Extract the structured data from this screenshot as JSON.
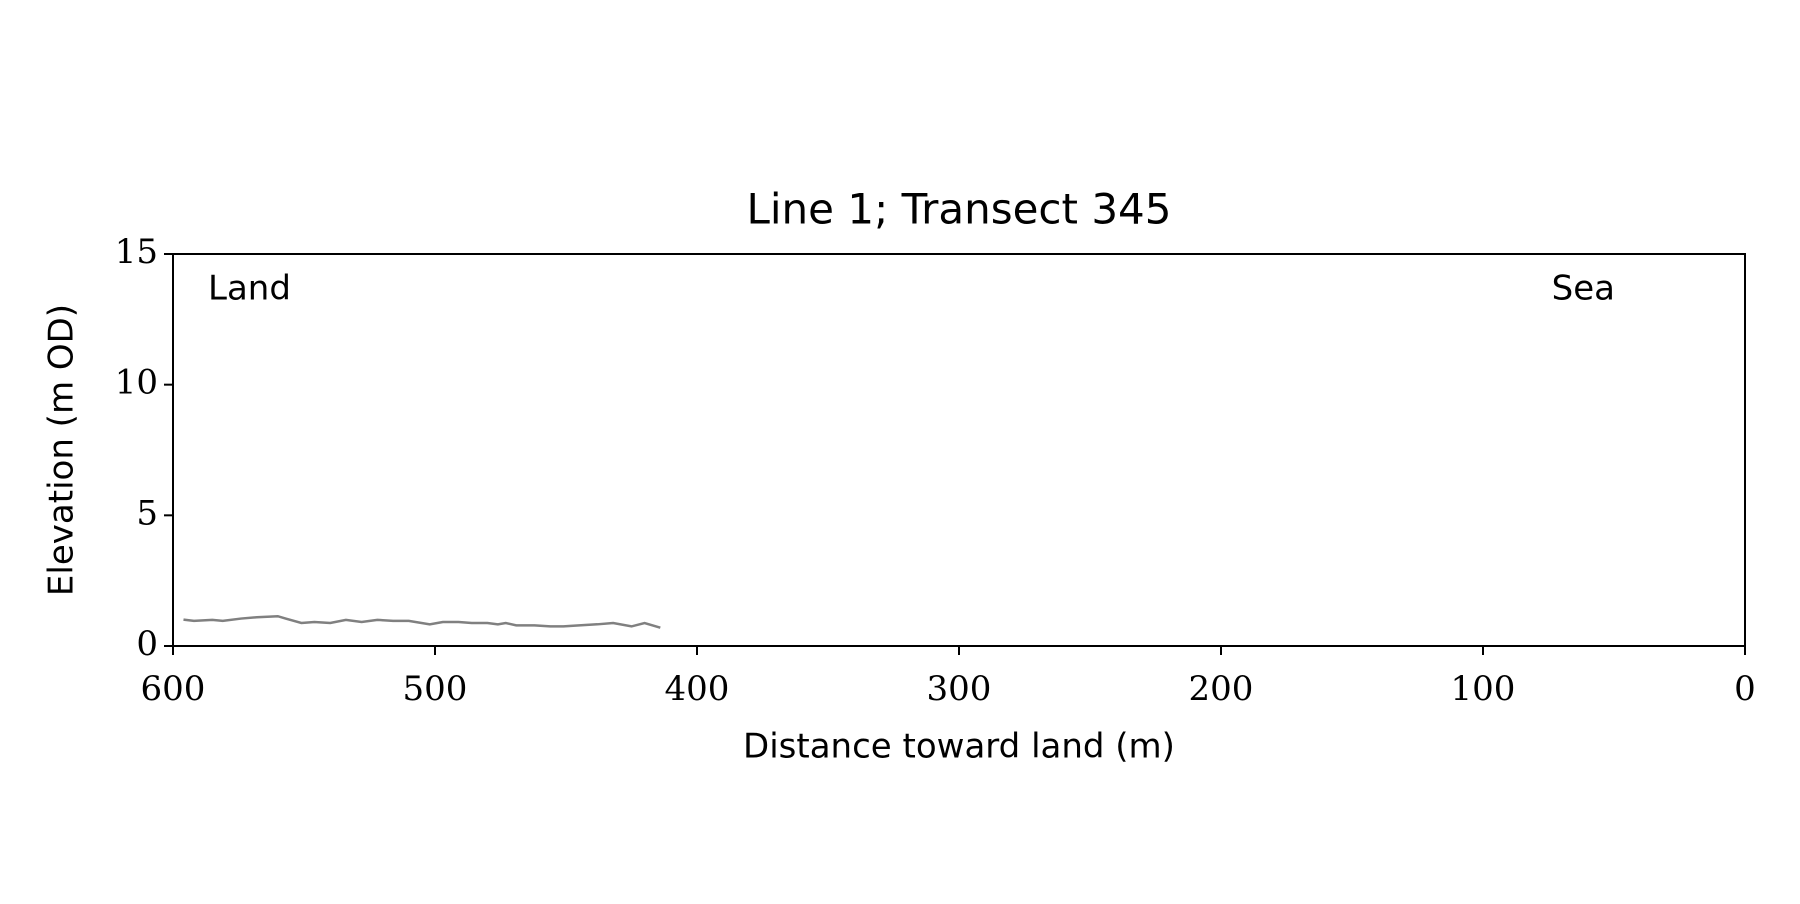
{
  "chart_data": {
    "type": "line",
    "title": "Line 1; Transect 345",
    "xlabel": "Distance toward land (m)",
    "ylabel": "Elevation (m OD)",
    "annotations": [
      "Land",
      "Sea"
    ],
    "x": [
      596,
      592,
      585,
      581,
      574,
      568,
      560,
      557,
      551,
      546,
      540,
      534,
      528,
      522,
      516,
      510,
      502,
      497,
      491,
      486,
      480,
      476,
      473,
      469,
      462,
      456,
      451,
      445,
      438,
      432,
      425,
      420,
      414
    ],
    "series": [
      {
        "color": "#808080",
        "values": [
          1.01,
          0.96,
          1.0,
          0.96,
          1.05,
          1.1,
          1.14,
          1.05,
          0.88,
          0.92,
          0.88,
          1.0,
          0.92,
          1.0,
          0.96,
          0.96,
          0.83,
          0.92,
          0.92,
          0.88,
          0.88,
          0.83,
          0.88,
          0.79,
          0.79,
          0.75,
          0.75,
          0.79,
          0.83,
          0.88,
          0.75,
          0.88,
          0.7
        ]
      }
    ],
    "xlim": [
      600,
      0
    ],
    "ylim": [
      0,
      15
    ],
    "xticks": [
      600,
      500,
      400,
      300,
      200,
      100,
      0
    ],
    "yticks": [
      0,
      5,
      10,
      15
    ],
    "grid": false
  }
}
